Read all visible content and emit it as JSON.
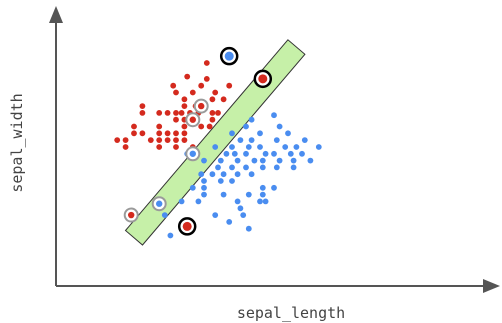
{
  "chart_data": {
    "type": "scatter",
    "title": "",
    "xlabel": "sepal_length",
    "ylabel": "sepal_width",
    "xlim": [
      0,
      100
    ],
    "ylim": [
      0,
      100
    ],
    "grid": false,
    "colors": {
      "red": "#d42a1e",
      "blue": "#4a8df0",
      "band_fill": "#c6f0a8",
      "band_edge": "#333333",
      "axis": "#555555",
      "support_ring": "#9a9a9a",
      "outlier_ring": "#000000"
    },
    "margin_band": {
      "center_line": [
        [
          15,
          12
        ],
        [
          73,
          96
        ]
      ],
      "half_width": 4
    },
    "series": [
      {
        "class": "red",
        "values": [
          [
            41,
            89
          ],
          [
            34,
            83
          ],
          [
            41,
            82
          ],
          [
            29,
            79
          ],
          [
            39,
            79
          ],
          [
            49,
            79
          ],
          [
            30,
            76
          ],
          [
            36,
            76
          ],
          [
            44,
            76
          ],
          [
            33,
            73
          ],
          [
            43,
            73
          ],
          [
            47,
            73
          ],
          [
            18,
            70
          ],
          [
            33,
            70
          ],
          [
            37,
            70
          ],
          [
            18,
            67
          ],
          [
            24,
            67
          ],
          [
            27,
            67
          ],
          [
            30,
            67
          ],
          [
            32,
            67
          ],
          [
            35,
            67
          ],
          [
            38,
            67
          ],
          [
            43,
            67
          ],
          [
            45,
            67
          ],
          [
            30,
            64
          ],
          [
            33,
            64
          ],
          [
            36,
            64
          ],
          [
            43,
            64
          ],
          [
            15,
            61
          ],
          [
            24,
            61
          ],
          [
            33,
            61
          ],
          [
            39,
            61
          ],
          [
            42,
            61
          ],
          [
            15,
            58
          ],
          [
            18,
            58
          ],
          [
            24,
            58
          ],
          [
            27,
            58
          ],
          [
            30,
            58
          ],
          [
            33,
            58
          ],
          [
            9,
            55
          ],
          [
            12,
            55
          ],
          [
            21,
            55
          ],
          [
            24,
            55
          ],
          [
            27,
            55
          ],
          [
            30,
            55
          ],
          [
            33,
            55
          ],
          [
            12,
            52
          ],
          [
            24,
            52
          ],
          [
            30,
            52
          ],
          [
            36,
            52
          ]
        ]
      },
      {
        "class": "blue",
        "values": [
          [
            65,
            66
          ],
          [
            57,
            64
          ],
          [
            55,
            61
          ],
          [
            67,
            61
          ],
          [
            50,
            58
          ],
          [
            60,
            58
          ],
          [
            70,
            58
          ],
          [
            53,
            55
          ],
          [
            57,
            55
          ],
          [
            66,
            55
          ],
          [
            76,
            55
          ],
          [
            44,
            52
          ],
          [
            50,
            52
          ],
          [
            56,
            52
          ],
          [
            60,
            52
          ],
          [
            69,
            52
          ],
          [
            73,
            52
          ],
          [
            81,
            52
          ],
          [
            34,
            49
          ],
          [
            48,
            49
          ],
          [
            51,
            49
          ],
          [
            55,
            49
          ],
          [
            62,
            49
          ],
          [
            65,
            49
          ],
          [
            71,
            49
          ],
          [
            75,
            49
          ],
          [
            40,
            46
          ],
          [
            46,
            46
          ],
          [
            52,
            46
          ],
          [
            58,
            46
          ],
          [
            61,
            46
          ],
          [
            67,
            46
          ],
          [
            72,
            46
          ],
          [
            78,
            46
          ],
          [
            45,
            43
          ],
          [
            50,
            43
          ],
          [
            55,
            43
          ],
          [
            61,
            43
          ],
          [
            66,
            43
          ],
          [
            72,
            43
          ],
          [
            39,
            40
          ],
          [
            43,
            40
          ],
          [
            47,
            40
          ],
          [
            52,
            40
          ],
          [
            57,
            40
          ],
          [
            40,
            37
          ],
          [
            46,
            37
          ],
          [
            50,
            37
          ],
          [
            36,
            34
          ],
          [
            40,
            34
          ],
          [
            61,
            34
          ],
          [
            65,
            34
          ],
          [
            40,
            31
          ],
          [
            47,
            31
          ],
          [
            56,
            31
          ],
          [
            61,
            31
          ],
          [
            32,
            28
          ],
          [
            38,
            28
          ],
          [
            52,
            28
          ],
          [
            60,
            28
          ],
          [
            62,
            28
          ],
          [
            53,
            25
          ],
          [
            26,
            22
          ],
          [
            44,
            22
          ],
          [
            54,
            22
          ],
          [
            49,
            19
          ],
          [
            56,
            16
          ],
          [
            28,
            13
          ]
        ]
      }
    ],
    "support_vectors": [
      {
        "class": "red",
        "x": 39,
        "y": 70
      },
      {
        "class": "red",
        "x": 36,
        "y": 64
      },
      {
        "class": "blue",
        "x": 36,
        "y": 49
      },
      {
        "class": "blue",
        "x": 24,
        "y": 27
      },
      {
        "class": "red",
        "x": 14,
        "y": 22
      }
    ],
    "misclassified": [
      {
        "class": "blue",
        "x": 49,
        "y": 92
      },
      {
        "class": "red",
        "x": 61,
        "y": 82
      },
      {
        "class": "red",
        "x": 34,
        "y": 17
      }
    ]
  }
}
